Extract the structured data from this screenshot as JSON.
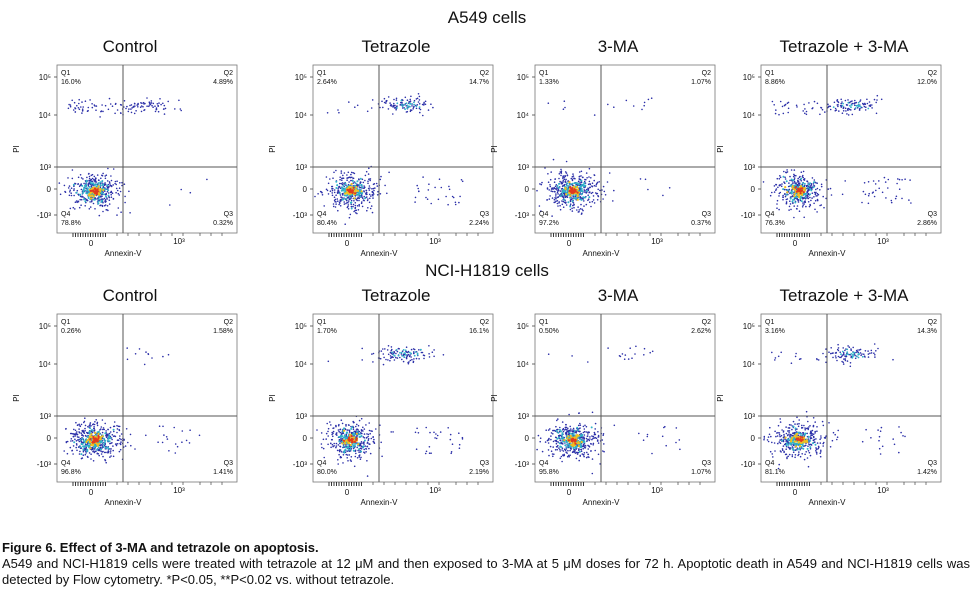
{
  "row_titles": [
    "A549 cells",
    "NCI-H1819 cells"
  ],
  "caption": {
    "title": "Figure 6. Effect of 3-MA and tetrazole on apoptosis.",
    "body": "A549 and NCI-H1819 cells were treated with tetrazole at 12 μM and then exposed to 3-MA at 5 μM doses for 72 h. Apoptotic death in A549 and NCI-H1819 cells was detected by Flow cytometry. *P<0.05, **P<0.02 vs. without tetrazole."
  },
  "axis": {
    "xlabel": "Annexin-V",
    "ylabel": "PI",
    "y_ticks": [
      "10⁵",
      "10⁴",
      "10³",
      "0",
      "-10³"
    ],
    "x_ticks": [
      "0",
      "10³"
    ]
  },
  "colors": {
    "dots": "#2b2fa8",
    "mid": "#2fb3c9",
    "hot": "#f0c020",
    "core": "#e03a20",
    "lines": "#555555"
  },
  "chart_data": [
    {
      "type": "scatter",
      "title": "Control",
      "group": "A549 cells",
      "quadrants": {
        "Q1": "16.0%",
        "Q2": "4.89%",
        "Q3": "0.32%",
        "Q4": "78.8%"
      }
    },
    {
      "type": "scatter",
      "title": "Tetrazole",
      "group": "A549 cells",
      "quadrants": {
        "Q1": "2.64%",
        "Q2": "14.7%",
        "Q3": "2.24%",
        "Q4": "80.4%"
      }
    },
    {
      "type": "scatter",
      "title": "3-MA",
      "group": "A549 cells",
      "quadrants": {
        "Q1": "1.33%",
        "Q2": "1.07%",
        "Q3": "0.37%",
        "Q4": "97.2%"
      }
    },
    {
      "type": "scatter",
      "title": "Tetrazole + 3-MA",
      "group": "A549 cells",
      "quadrants": {
        "Q1": "8.86%",
        "Q2": "12.0%",
        "Q3": "2.86%",
        "Q4": "76.3%"
      }
    },
    {
      "type": "scatter",
      "title": "Control",
      "group": "NCI-H1819 cells",
      "quadrants": {
        "Q1": "0.26%",
        "Q2": "1.58%",
        "Q3": "1.41%",
        "Q4": "96.8%"
      }
    },
    {
      "type": "scatter",
      "title": "Tetrazole",
      "group": "NCI-H1819 cells",
      "quadrants": {
        "Q1": "1.70%",
        "Q2": "16.1%",
        "Q3": "2.19%",
        "Q4": "80.0%"
      }
    },
    {
      "type": "scatter",
      "title": "3-MA",
      "group": "NCI-H1819 cells",
      "quadrants": {
        "Q1": "0.50%",
        "Q2": "2.62%",
        "Q3": "1.07%",
        "Q4": "95.8%"
      }
    },
    {
      "type": "scatter",
      "title": "Tetrazole + 3-MA",
      "group": "NCI-H1819 cells",
      "quadrants": {
        "Q1": "3.16%",
        "Q2": "14.3%",
        "Q3": "1.42%",
        "Q4": "81.1%"
      }
    }
  ]
}
